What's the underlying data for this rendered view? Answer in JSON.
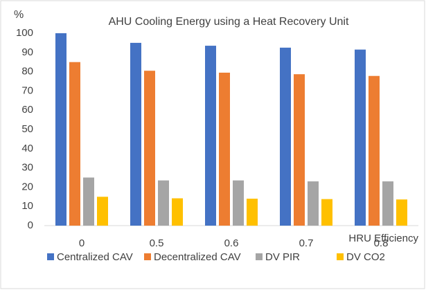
{
  "chart_data": {
    "type": "bar",
    "title": "AHU Cooling Energy using a Heat Recovery Unit",
    "y_label": "%",
    "x_label": "HRU Efficiency",
    "categories": [
      "0",
      "0.5",
      "0.6",
      "0.7",
      "0.8"
    ],
    "series": [
      {
        "name": "Centralized CAV",
        "color": "#4472c4",
        "values": [
          100,
          95,
          93.5,
          92.5,
          91.5
        ]
      },
      {
        "name": "Decentralized CAV",
        "color": "#ed7d31",
        "values": [
          85,
          80.5,
          79.5,
          78.7,
          77.8
        ]
      },
      {
        "name": "DV PIR",
        "color": "#a5a5a5",
        "values": [
          25,
          23.5,
          23.5,
          23,
          23
        ]
      },
      {
        "name": "DV CO2",
        "color": "#ffc000",
        "values": [
          15,
          14.2,
          14,
          13.8,
          13.6
        ]
      }
    ],
    "ylim": [
      0,
      100
    ],
    "yticks": [
      0,
      10,
      20,
      30,
      40,
      50,
      60,
      70,
      80,
      90,
      100
    ]
  }
}
